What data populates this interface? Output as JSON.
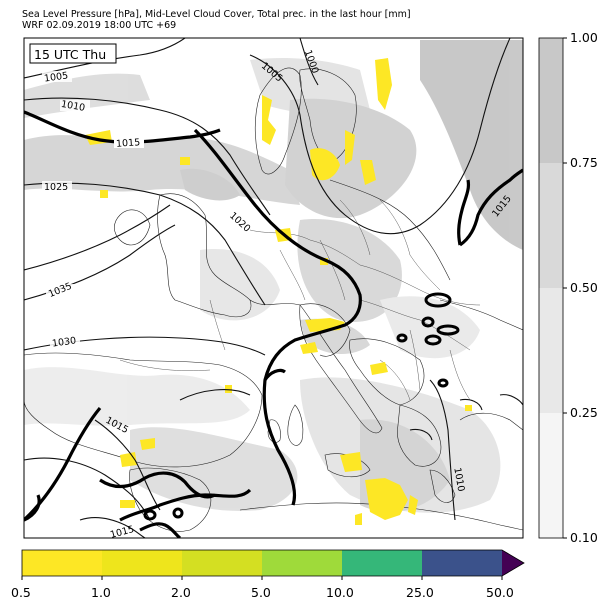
{
  "header": {
    "title_line1": "Sea Level Pressure [hPa], Mid-Level Cloud Cover, Total prec. in the last hour [mm]",
    "title_line2": "WRF 02.09.2019 18:00 UTC +69"
  },
  "map": {
    "time_badge": "15 UTC Thu",
    "isobar_labels": [
      "1005",
      "1010",
      "1015",
      "1025",
      "1035",
      "1030",
      "1020",
      "1005",
      "1000",
      "1015",
      "1015",
      "1015",
      "1010"
    ]
  },
  "cloud_colorbar": {
    "ticks": [
      "1.00",
      "0.75",
      "0.50",
      "0.25",
      "0.10"
    ],
    "colors": [
      "#c8c8c8",
      "#d9d9d9",
      "#e8e8e8",
      "#f5f5f5"
    ]
  },
  "precip_colorbar": {
    "ticks": [
      "0.5",
      "1.0",
      "2.0",
      "5.0",
      "10.0",
      "25.0",
      "50.0"
    ],
    "colors": [
      "#fde725",
      "#eee51c",
      "#d4df22",
      "#9fda3a",
      "#35b779",
      "#31688e",
      "#3b528b",
      "#440154"
    ]
  }
}
